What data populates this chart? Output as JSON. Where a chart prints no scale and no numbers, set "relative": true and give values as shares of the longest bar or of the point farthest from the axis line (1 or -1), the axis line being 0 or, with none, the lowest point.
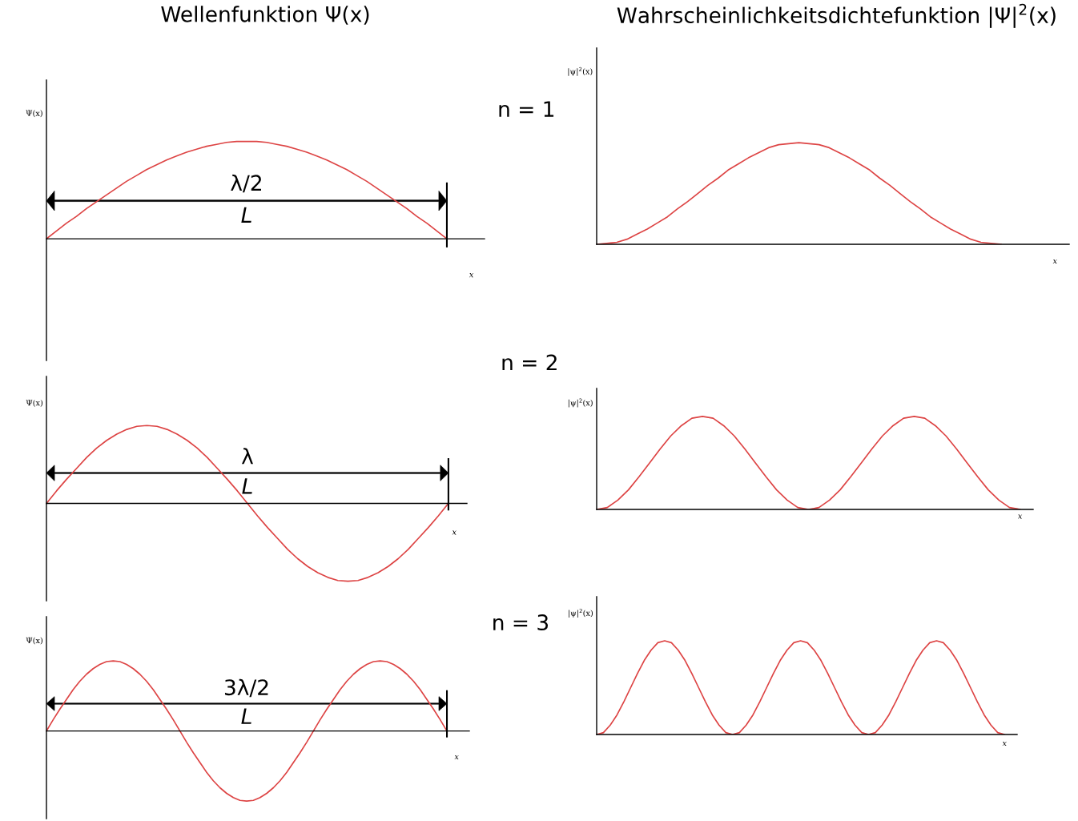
{
  "chart_data": [
    {
      "type": "line",
      "title": "Wellenfunktion Ψ(x)",
      "xlabel": "x",
      "ylabel": "Ψ(x)",
      "relative": true,
      "annotations": [
        "λ/2",
        "L"
      ],
      "categories": [
        null,
        null,
        null,
        null,
        null,
        null,
        null,
        null,
        null,
        null,
        null,
        null,
        null,
        null,
        null,
        null,
        null,
        null,
        null,
        null,
        null,
        null,
        null,
        null,
        null,
        null,
        null,
        null,
        null,
        null,
        null,
        null,
        null,
        null,
        null,
        null,
        null,
        null,
        null,
        null,
        null
      ],
      "series": [
        {
          "color": "#dd4444",
          "values": [
            0,
            0.08,
            0.16,
            0.23,
            0.31,
            0.38,
            0.45,
            0.52,
            0.59,
            0.65,
            0.71,
            0.76,
            0.81,
            0.85,
            0.89,
            0.92,
            0.95,
            0.97,
            0.99,
            1,
            1,
            1,
            0.99,
            0.97,
            0.95,
            0.92,
            0.89,
            0.85,
            0.81,
            0.76,
            0.71,
            0.65,
            0.59,
            0.52,
            0.45,
            0.38,
            0.31,
            0.23,
            0.16,
            0.08,
            0
          ]
        }
      ]
    },
    {
      "type": "line",
      "title": "Wahrscheinlichkeitsdichtefunktion |Ψ|$^{2}$(x)",
      "xlabel": "x",
      "ylabel": "|ψ|$^{2}$(x)",
      "relative": true,
      "annotations": [
        "n = 1"
      ],
      "categories": [
        null,
        null,
        null,
        null,
        null,
        null,
        null,
        null,
        null,
        null,
        null,
        null,
        null,
        null,
        null,
        null,
        null,
        null,
        null,
        null,
        null,
        null,
        null,
        null,
        null,
        null,
        null,
        null,
        null,
        null,
        null,
        null,
        null,
        null,
        null,
        null,
        null,
        null,
        null,
        null,
        null
      ],
      "series": [
        {
          "color": "#dd4444",
          "values": [
            0,
            0.01,
            0.02,
            0.05,
            0.1,
            0.15,
            0.21,
            0.27,
            0.35,
            0.42,
            0.5,
            0.58,
            0.65,
            0.73,
            0.79,
            0.85,
            0.9,
            0.95,
            0.98,
            0.99,
            1,
            0.99,
            0.98,
            0.95,
            0.9,
            0.85,
            0.79,
            0.73,
            0.65,
            0.58,
            0.5,
            0.42,
            0.35,
            0.27,
            0.21,
            0.15,
            0.1,
            0.05,
            0.02,
            0.01,
            0
          ]
        }
      ]
    },
    {
      "type": "line",
      "xlabel": "x",
      "ylabel": "Ψ(x)",
      "relative": true,
      "annotations": [
        "λ",
        "L"
      ],
      "categories": [
        null,
        null,
        null,
        null,
        null,
        null,
        null,
        null,
        null,
        null,
        null,
        null,
        null,
        null,
        null,
        null,
        null,
        null,
        null,
        null,
        null,
        null,
        null,
        null,
        null,
        null,
        null,
        null,
        null,
        null,
        null,
        null,
        null,
        null,
        null,
        null,
        null,
        null,
        null,
        null,
        null
      ],
      "series": [
        {
          "color": "#dd4444",
          "values": [
            0,
            0.16,
            0.31,
            0.45,
            0.59,
            0.71,
            0.81,
            0.89,
            0.95,
            0.99,
            1,
            0.99,
            0.95,
            0.89,
            0.81,
            0.71,
            0.59,
            0.45,
            0.31,
            0.16,
            0,
            -0.16,
            -0.31,
            -0.45,
            -0.59,
            -0.71,
            -0.81,
            -0.89,
            -0.95,
            -0.99,
            -1,
            -0.99,
            -0.95,
            -0.89,
            -0.81,
            -0.71,
            -0.59,
            -0.45,
            -0.31,
            -0.16,
            0
          ]
        }
      ]
    },
    {
      "type": "line",
      "xlabel": "x",
      "ylabel": "|ψ|$^{2}$(x)",
      "relative": true,
      "annotations": [
        "n = 2"
      ],
      "categories": [
        null,
        null,
        null,
        null,
        null,
        null,
        null,
        null,
        null,
        null,
        null,
        null,
        null,
        null,
        null,
        null,
        null,
        null,
        null,
        null,
        null,
        null,
        null,
        null,
        null,
        null,
        null,
        null,
        null,
        null,
        null,
        null,
        null,
        null,
        null,
        null,
        null,
        null,
        null,
        null,
        null
      ],
      "series": [
        {
          "color": "#dd4444",
          "values": [
            0,
            0.02,
            0.1,
            0.21,
            0.35,
            0.5,
            0.65,
            0.79,
            0.9,
            0.98,
            1,
            0.98,
            0.9,
            0.79,
            0.65,
            0.5,
            0.35,
            0.21,
            0.1,
            0.02,
            0,
            0.02,
            0.1,
            0.21,
            0.35,
            0.5,
            0.65,
            0.79,
            0.9,
            0.98,
            1,
            0.98,
            0.9,
            0.79,
            0.65,
            0.5,
            0.35,
            0.21,
            0.1,
            0.02,
            0
          ]
        }
      ]
    },
    {
      "type": "line",
      "xlabel": "x",
      "ylabel": "Ψ(x)",
      "relative": true,
      "annotations": [
        "3λ/2",
        "L"
      ],
      "categories": [
        null,
        null,
        null,
        null,
        null,
        null,
        null,
        null,
        null,
        null,
        null,
        null,
        null,
        null,
        null,
        null,
        null,
        null,
        null,
        null,
        null,
        null,
        null,
        null,
        null,
        null,
        null,
        null,
        null,
        null,
        null,
        null,
        null,
        null,
        null,
        null,
        null,
        null,
        null,
        null,
        null,
        null,
        null,
        null,
        null,
        null,
        null,
        null,
        null,
        null,
        null,
        null,
        null,
        null,
        null,
        null,
        null,
        null,
        null,
        null,
        null
      ],
      "series": [
        {
          "color": "#dd4444",
          "values": [
            0,
            0.16,
            0.31,
            0.45,
            0.59,
            0.71,
            0.81,
            0.89,
            0.95,
            0.99,
            1,
            0.99,
            0.95,
            0.89,
            0.81,
            0.71,
            0.59,
            0.45,
            0.31,
            0.16,
            0,
            -0.16,
            -0.31,
            -0.45,
            -0.59,
            -0.71,
            -0.81,
            -0.89,
            -0.95,
            -0.99,
            -1,
            -0.99,
            -0.95,
            -0.89,
            -0.81,
            -0.71,
            -0.59,
            -0.45,
            -0.31,
            -0.16,
            0,
            0.16,
            0.31,
            0.45,
            0.59,
            0.71,
            0.81,
            0.89,
            0.95,
            0.99,
            1,
            0.99,
            0.95,
            0.89,
            0.81,
            0.71,
            0.59,
            0.45,
            0.31,
            0.16,
            0
          ]
        }
      ]
    },
    {
      "type": "line",
      "xlabel": "x",
      "ylabel": "|ψ|$^{2}$(x)",
      "relative": true,
      "annotations": [
        "n = 3"
      ],
      "categories": [
        null,
        null,
        null,
        null,
        null,
        null,
        null,
        null,
        null,
        null,
        null,
        null,
        null,
        null,
        null,
        null,
        null,
        null,
        null,
        null,
        null,
        null,
        null,
        null,
        null,
        null,
        null,
        null,
        null,
        null,
        null,
        null,
        null,
        null,
        null,
        null,
        null,
        null,
        null,
        null,
        null,
        null,
        null,
        null,
        null,
        null,
        null,
        null,
        null,
        null,
        null,
        null,
        null,
        null,
        null,
        null,
        null,
        null,
        null,
        null,
        null
      ],
      "series": [
        {
          "color": "#dd4444",
          "values": [
            0,
            0.02,
            0.1,
            0.21,
            0.35,
            0.5,
            0.65,
            0.79,
            0.9,
            0.98,
            1,
            0.98,
            0.9,
            0.79,
            0.65,
            0.5,
            0.35,
            0.21,
            0.1,
            0.02,
            0,
            0.02,
            0.1,
            0.21,
            0.35,
            0.5,
            0.65,
            0.79,
            0.9,
            0.98,
            1,
            0.98,
            0.9,
            0.79,
            0.65,
            0.5,
            0.35,
            0.21,
            0.1,
            0.02,
            0,
            0.02,
            0.1,
            0.21,
            0.35,
            0.5,
            0.65,
            0.79,
            0.9,
            0.98,
            1,
            0.98,
            0.9,
            0.79,
            0.65,
            0.5,
            0.35,
            0.21,
            0.1,
            0.02,
            0
          ]
        }
      ]
    }
  ]
}
